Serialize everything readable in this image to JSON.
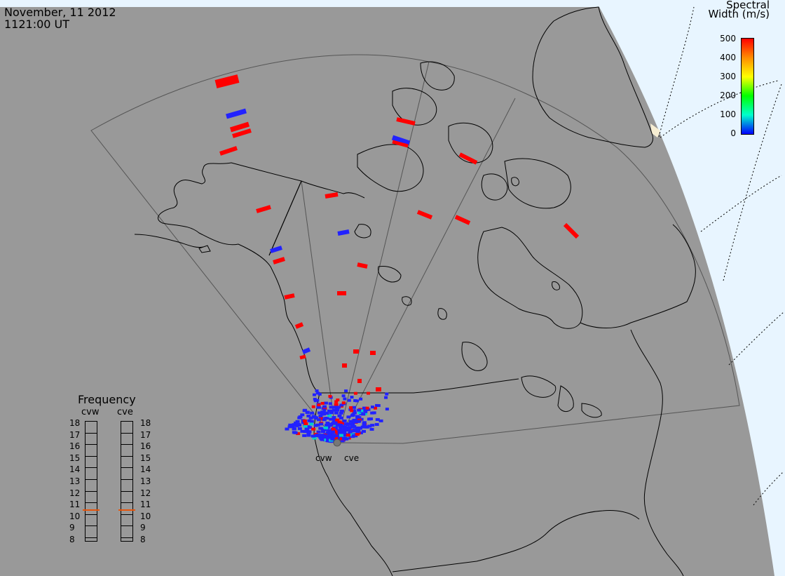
{
  "header": {
    "date": "November, 11 2012",
    "time": "1121:00 UT"
  },
  "colorbar": {
    "title_line1": "Spectral",
    "title_line2": "Width (m/s)",
    "ticks": [
      "500",
      "400",
      "300",
      "200",
      "100",
      "0"
    ],
    "gradient_colors": [
      "#ff0000",
      "#ff8c00",
      "#ffff00",
      "#00ff00",
      "#00ffcc",
      "#0000ff"
    ]
  },
  "sites": {
    "west": "cvw",
    "east": "cve"
  },
  "frequency_panel": {
    "title": "Frequency",
    "column_west": "cvw",
    "column_east": "cve",
    "levels": [
      "18",
      "17",
      "16",
      "15",
      "14",
      "13",
      "12",
      "11",
      "10",
      "9",
      "8"
    ],
    "marker_value_cvw": 10.6,
    "marker_value_cve": 10.6,
    "marker_color": "#e8540a"
  },
  "colors": {
    "land_bg": "#999999",
    "ocean_bg": "#e8f5ff",
    "echo_high": "#ff0000",
    "echo_low": "#2222ff",
    "coast": "#000000",
    "fov": "#555555"
  }
}
